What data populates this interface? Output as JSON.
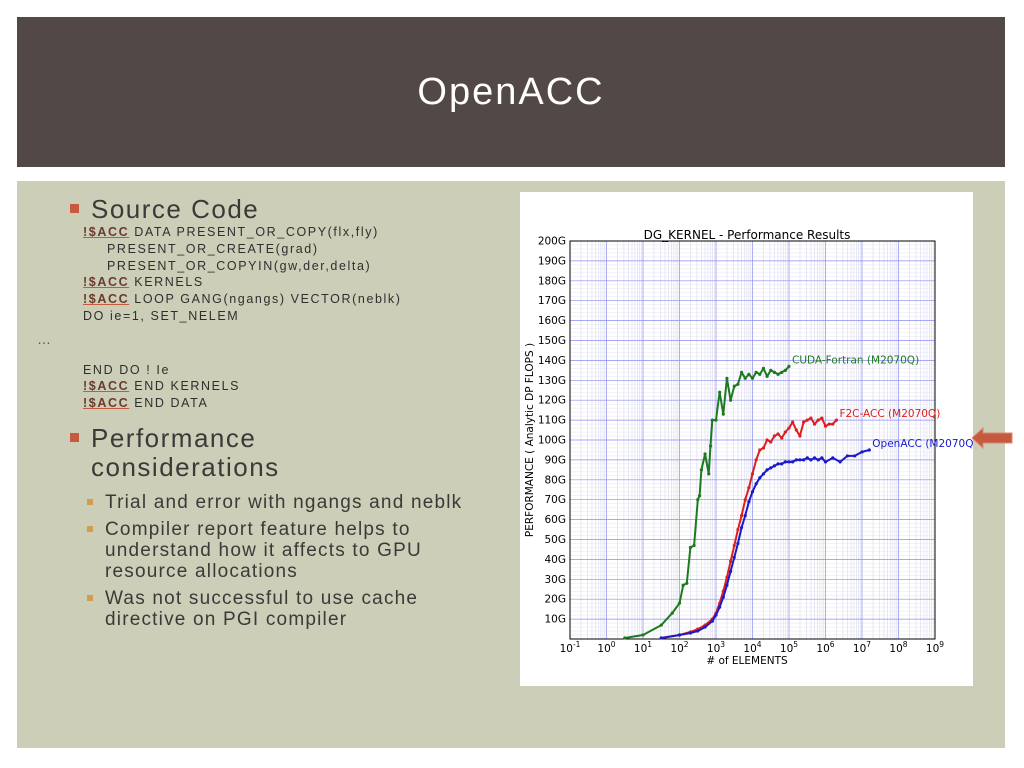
{
  "slide": {
    "title": "OpenACC"
  },
  "bullets": [
    {
      "text": "Source Code"
    },
    {
      "text": "Performance considerations"
    }
  ],
  "code": {
    "line1_kw": "!$ACC",
    "line1_rest": " DATA PRESENT_OR_COPY(flx,fly)",
    "line2": "PRESENT_OR_CREATE(grad)",
    "line3": "PRESENT_OR_COPYIN(gw,der,delta)",
    "line4_kw": "!$ACC",
    "line4_rest": " KERNELS",
    "line5_kw": "!$ACC",
    "line5_rest": " LOOP GANG(ngangs) VECTOR(neblk)",
    "line6": "DO ie=1, SET_NELEM",
    "ellipsis": "…",
    "line7": "END DO ! Ie",
    "line8_kw": "!$ACC",
    "line8_rest": " END KERNELS",
    "line9_kw": "!$ACC",
    "line9_rest": " END DATA"
  },
  "sub_bullets": [
    "Trial and error with ngangs and neblk",
    "Compiler report feature helps to understand how it affects to GPU resource allocations",
    "Was not successful to use cache directive on PGI compiler"
  ],
  "colors": {
    "title_bg": "#524846",
    "content_bg": "#ccceb8",
    "bullet": "#c55a3e",
    "sub_bullet": "#d0a048",
    "arrow": "#c55a3e"
  },
  "chart_data": {
    "type": "line",
    "title": "DG_KERNEL - Performance Results",
    "xlabel": "# of ELEMENTS",
    "ylabel": "PERFORMANCE ( Analytic DP FLOPS )",
    "xscale": "log",
    "xlim_exp": [
      -1,
      9
    ],
    "ylim": [
      0,
      200
    ],
    "x_tick_labels": [
      "10-1",
      "100",
      "101",
      "102",
      "103",
      "104",
      "105",
      "106",
      "107",
      "108",
      "109"
    ],
    "y_tick_labels": [
      "10G",
      "20G",
      "30G",
      "40G",
      "50G",
      "60G",
      "70G",
      "80G",
      "90G",
      "100G",
      "110G",
      "120G",
      "130G",
      "140G",
      "150G",
      "160G",
      "170G",
      "180G",
      "190G",
      "200G"
    ],
    "grid": true,
    "series": [
      {
        "name": "CUDA-Fortran (M2070Q)",
        "color": "#1e7a1e",
        "x_exp": [
          0.5,
          1,
          1.5,
          1.8,
          2,
          2.1,
          2.2,
          2.3,
          2.4,
          2.5,
          2.55,
          2.6,
          2.7,
          2.8,
          2.85,
          2.9,
          3,
          3.1,
          3.2,
          3.3,
          3.4,
          3.5,
          3.6,
          3.7,
          3.8,
          3.9,
          4,
          4.1,
          4.2,
          4.3,
          4.4,
          4.5,
          4.6,
          4.7,
          4.8,
          4.9,
          5
        ],
        "values": [
          0.5,
          2,
          7,
          13,
          18,
          27,
          28,
          46,
          47,
          70,
          72,
          85,
          93,
          83,
          97,
          110,
          110,
          124,
          113,
          131,
          120,
          127,
          128,
          134,
          131,
          133,
          131,
          134,
          133,
          136,
          132,
          135,
          134,
          133,
          134,
          135,
          137
        ]
      },
      {
        "name": "F2C-ACC (M2070Q)",
        "color": "#e01e1e",
        "x_exp": [
          1.5,
          2,
          2.3,
          2.5,
          2.7,
          2.9,
          3,
          3.1,
          3.2,
          3.3,
          3.4,
          3.5,
          3.6,
          3.7,
          3.8,
          3.9,
          4,
          4.1,
          4.2,
          4.3,
          4.4,
          4.5,
          4.6,
          4.7,
          4.8,
          4.9,
          5,
          5.1,
          5.2,
          5.3,
          5.4,
          5.5,
          5.6,
          5.7,
          5.8,
          5.9,
          6,
          6.1,
          6.2,
          6.3
        ],
        "values": [
          0.5,
          2,
          3.5,
          5,
          7,
          10,
          13,
          18,
          24,
          31,
          39,
          47,
          55,
          62,
          70,
          76,
          83,
          90,
          95,
          96,
          100,
          99,
          102,
          103,
          101,
          104,
          106,
          109,
          105,
          102,
          109,
          110,
          111,
          108,
          110,
          111,
          107,
          108,
          108,
          110
        ]
      },
      {
        "name": "OpenACC (M2070Q)",
        "color": "#1a1ac8",
        "x_exp": [
          1.5,
          2,
          2.3,
          2.5,
          2.7,
          2.9,
          3,
          3.1,
          3.2,
          3.3,
          3.4,
          3.5,
          3.6,
          3.7,
          3.8,
          3.9,
          4,
          4.1,
          4.2,
          4.3,
          4.4,
          4.5,
          4.6,
          4.7,
          4.8,
          4.9,
          5,
          5.1,
          5.2,
          5.3,
          5.4,
          5.5,
          5.6,
          5.7,
          5.8,
          5.9,
          6,
          6.2,
          6.4,
          6.6,
          6.8,
          7,
          7.2
        ],
        "values": [
          0.5,
          2,
          3,
          4,
          6,
          9,
          12,
          16,
          21,
          27,
          34,
          41,
          48,
          56,
          62,
          69,
          74,
          78,
          81,
          83,
          85,
          86,
          87,
          88,
          88,
          89,
          89,
          89,
          90,
          90,
          90,
          91,
          90,
          91,
          90,
          91,
          89,
          91,
          89,
          92,
          92,
          94,
          95
        ]
      }
    ]
  }
}
